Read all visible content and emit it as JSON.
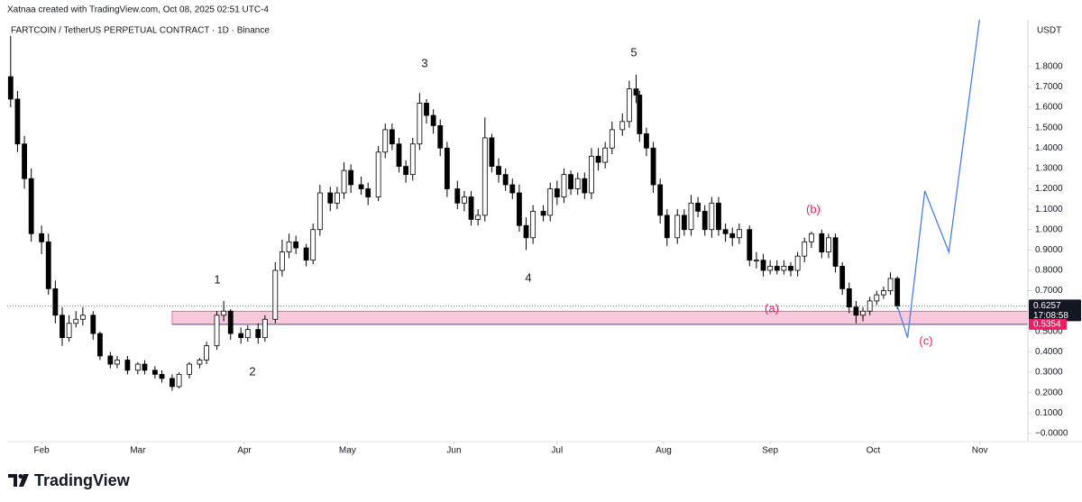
{
  "chart_data": {
    "type": "candlestick",
    "attribution": "Xatnaa created with TradingView.com, Oct 08, 2025 02:51 UTC-4",
    "title": "FARTCOIN / TetherUS PERPETUAL CONTRACT · 1D · Binance",
    "currency": "USDT",
    "brand": "TradingView",
    "up_color": "#ffffff",
    "down_color": "#000000",
    "edge_color": "#000000",
    "grid": false,
    "x": [
      23,
      25,
      27,
      29,
      32,
      34,
      36,
      38,
      40,
      42,
      44,
      47,
      49,
      52,
      54,
      57,
      60,
      62,
      65,
      67,
      70,
      72,
      75,
      78,
      80,
      83,
      85,
      87,
      90,
      92,
      95,
      97,
      100,
      102,
      104,
      106,
      109,
      111,
      113,
      116,
      118,
      120,
      122,
      125,
      127,
      130,
      132,
      134,
      136,
      138,
      140,
      142,
      144,
      146,
      148,
      150,
      153,
      155,
      157,
      159,
      161,
      163,
      165,
      167,
      169,
      171,
      173,
      175,
      178,
      180,
      182,
      184,
      186,
      188,
      190,
      192,
      194,
      196,
      198,
      201,
      203,
      205,
      206,
      208,
      210,
      212,
      214,
      217,
      219,
      221,
      223,
      225,
      227,
      229,
      231,
      233,
      235,
      238,
      240,
      242,
      244,
      246,
      248,
      250,
      252,
      254,
      256,
      259,
      261,
      263,
      265,
      267,
      269,
      271,
      273,
      275,
      277,
      279,
      281
    ],
    "open": [
      1.75,
      1.64,
      1.42,
      1.25,
      0.98,
      0.94,
      0.71,
      0.58,
      0.47,
      0.54,
      0.56,
      0.58,
      0.49,
      0.38,
      0.34,
      0.36,
      0.31,
      0.34,
      0.31,
      0.29,
      0.27,
      0.23,
      0.29,
      0.34,
      0.36,
      0.43,
      0.58,
      0.6,
      0.49,
      0.47,
      0.51,
      0.47,
      0.56,
      0.8,
      0.89,
      0.94,
      0.91,
      0.85,
      1.0,
      1.18,
      1.13,
      1.18,
      1.29,
      1.22,
      1.2,
      1.16,
      1.38,
      1.49,
      1.42,
      1.31,
      1.27,
      1.42,
      1.62,
      1.56,
      1.51,
      1.4,
      1.2,
      1.13,
      1.16,
      1.05,
      1.07,
      1.45,
      1.31,
      1.27,
      1.22,
      1.18,
      1.02,
      0.96,
      1.09,
      1.07,
      1.2,
      1.16,
      1.27,
      1.2,
      1.25,
      1.18,
      1.36,
      1.33,
      1.4,
      1.49,
      1.53,
      1.69,
      1.66,
      1.47,
      1.4,
      1.22,
      1.07,
      0.96,
      1.07,
      1.0,
      1.13,
      1.09,
      1.0,
      1.13,
      1.0,
      0.98,
      0.96,
      1.0,
      0.85,
      0.85,
      0.8,
      0.82,
      0.8,
      0.82,
      0.8,
      0.87,
      0.94,
      0.98,
      0.89,
      0.96,
      0.82,
      0.71,
      0.62,
      0.58,
      0.6,
      0.65,
      0.68,
      0.7,
      0.76
    ],
    "high": [
      1.95,
      1.68,
      1.46,
      1.3,
      1.02,
      0.98,
      0.75,
      0.62,
      0.58,
      0.6,
      0.62,
      0.6,
      0.5,
      0.4,
      0.38,
      0.38,
      0.35,
      0.36,
      0.33,
      0.31,
      0.29,
      0.3,
      0.35,
      0.37,
      0.45,
      0.6,
      0.65,
      0.61,
      0.52,
      0.53,
      0.54,
      0.58,
      0.84,
      0.95,
      0.98,
      0.97,
      0.93,
      1.03,
      1.22,
      1.21,
      1.21,
      1.33,
      1.32,
      1.26,
      1.23,
      1.41,
      1.52,
      1.52,
      1.45,
      1.34,
      1.45,
      1.67,
      1.64,
      1.59,
      1.54,
      1.43,
      1.24,
      1.19,
      1.19,
      1.1,
      1.55,
      1.47,
      1.35,
      1.3,
      1.25,
      1.22,
      1.06,
      1.12,
      1.12,
      1.23,
      1.24,
      1.3,
      1.29,
      1.28,
      1.28,
      1.4,
      1.4,
      1.43,
      1.53,
      1.57,
      1.73,
      1.76,
      1.68,
      1.5,
      1.43,
      1.25,
      1.1,
      1.1,
      1.1,
      1.17,
      1.16,
      1.12,
      1.16,
      1.16,
      1.03,
      1.01,
      1.03,
      1.02,
      0.89,
      0.88,
      0.85,
      0.85,
      0.85,
      0.84,
      0.89,
      0.96,
      0.99,
      1.0,
      0.98,
      0.98,
      0.84,
      0.74,
      0.65,
      0.62,
      0.67,
      0.7,
      0.72,
      0.79,
      0.77
    ],
    "low": [
      1.6,
      1.38,
      1.2,
      0.94,
      0.88,
      0.68,
      0.54,
      0.43,
      0.45,
      0.52,
      0.53,
      0.46,
      0.36,
      0.32,
      0.32,
      0.29,
      0.29,
      0.29,
      0.27,
      0.25,
      0.21,
      0.22,
      0.27,
      0.32,
      0.34,
      0.41,
      0.55,
      0.46,
      0.44,
      0.45,
      0.44,
      0.45,
      0.54,
      0.77,
      0.86,
      0.88,
      0.82,
      0.83,
      0.97,
      1.09,
      1.1,
      1.15,
      1.18,
      1.17,
      1.12,
      1.14,
      1.35,
      1.39,
      1.28,
      1.23,
      1.24,
      1.39,
      1.52,
      1.47,
      1.36,
      1.16,
      1.1,
      1.09,
      1.02,
      1.02,
      1.04,
      1.28,
      1.23,
      1.19,
      1.15,
      0.99,
      0.9,
      0.93,
      1.04,
      1.04,
      1.12,
      1.13,
      1.17,
      1.17,
      1.15,
      1.15,
      1.29,
      1.3,
      1.37,
      1.46,
      1.5,
      1.62,
      1.43,
      1.36,
      1.18,
      1.03,
      0.92,
      0.93,
      0.97,
      0.97,
      1.06,
      0.97,
      0.96,
      0.97,
      0.94,
      0.92,
      0.93,
      0.82,
      0.81,
      0.77,
      0.78,
      0.78,
      0.78,
      0.77,
      0.77,
      0.84,
      0.91,
      0.86,
      0.86,
      0.79,
      0.68,
      0.59,
      0.54,
      0.55,
      0.58,
      0.63,
      0.66,
      0.68,
      0.61
    ],
    "close": [
      1.64,
      1.42,
      1.25,
      0.98,
      0.94,
      0.71,
      0.58,
      0.47,
      0.54,
      0.56,
      0.58,
      0.49,
      0.38,
      0.34,
      0.36,
      0.31,
      0.34,
      0.31,
      0.29,
      0.27,
      0.23,
      0.29,
      0.34,
      0.36,
      0.43,
      0.58,
      0.6,
      0.49,
      0.47,
      0.51,
      0.47,
      0.56,
      0.8,
      0.89,
      0.94,
      0.91,
      0.85,
      1.0,
      1.18,
      1.13,
      1.18,
      1.29,
      1.22,
      1.2,
      1.16,
      1.38,
      1.49,
      1.42,
      1.31,
      1.27,
      1.42,
      1.62,
      1.56,
      1.51,
      1.4,
      1.2,
      1.13,
      1.16,
      1.05,
      1.07,
      1.45,
      1.31,
      1.27,
      1.22,
      1.18,
      1.02,
      0.96,
      1.09,
      1.07,
      1.2,
      1.16,
      1.27,
      1.2,
      1.25,
      1.18,
      1.36,
      1.33,
      1.4,
      1.49,
      1.53,
      1.69,
      1.66,
      1.47,
      1.4,
      1.22,
      1.07,
      0.96,
      1.07,
      1.0,
      1.13,
      1.09,
      1.0,
      1.13,
      1.0,
      0.98,
      0.96,
      1.0,
      0.85,
      0.85,
      0.8,
      0.82,
      0.8,
      0.82,
      0.8,
      0.87,
      0.94,
      0.98,
      0.89,
      0.96,
      0.82,
      0.71,
      0.62,
      0.58,
      0.6,
      0.65,
      0.68,
      0.7,
      0.76,
      0.6257
    ],
    "countdown": "17:08:58",
    "zone": {
      "from_x": 70,
      "range": [
        0.5354,
        0.6
      ],
      "color": "#f8c8dc",
      "edge_color": "#e91e63",
      "line_color": "#3f51b5"
    },
    "projection": {
      "x": [
        281,
        284,
        289,
        296,
        305
      ],
      "y": [
        0.6257,
        0.47,
        1.19,
        0.89,
        2.04
      ],
      "color": "#4a7fe0"
    },
    "annotations": [
      "1",
      "2",
      "3",
      "4",
      "5",
      "(a)",
      "(b)",
      "(c)"
    ],
    "xlim": [
      22,
      319
    ],
    "xticks": [
      {
        "value": 32,
        "label": "Feb"
      },
      {
        "value": 60,
        "label": "Mar"
      },
      {
        "value": 91,
        "label": "Apr"
      },
      {
        "value": 121,
        "label": "May"
      },
      {
        "value": 152,
        "label": "Jun"
      },
      {
        "value": 182,
        "label": "Jul"
      },
      {
        "value": 213,
        "label": "Aug"
      },
      {
        "value": 244,
        "label": "Sep"
      },
      {
        "value": 274,
        "label": "Oct"
      },
      {
        "value": 305,
        "label": "Nov"
      }
    ],
    "ylim": [
      -0.04,
      2.02
    ],
    "yticks": [
      {
        "value": 0,
        "label": "−0.0000"
      },
      {
        "value": 0.1,
        "label": "0.1000"
      },
      {
        "value": 0.2,
        "label": "0.2000"
      },
      {
        "value": 0.3,
        "label": "0.3000"
      },
      {
        "value": 0.4,
        "label": "0.4000"
      },
      {
        "value": 0.5,
        "label": "0.5000"
      },
      {
        "value": 0.6,
        "label": "0.6000"
      },
      {
        "value": 0.7,
        "label": "0.7000"
      },
      {
        "value": 0.8,
        "label": "0.8000"
      },
      {
        "value": 0.9,
        "label": "0.9000"
      },
      {
        "value": 1.0,
        "label": "1.0000"
      },
      {
        "value": 1.1,
        "label": "1.1000"
      },
      {
        "value": 1.2,
        "label": "1.2000"
      },
      {
        "value": 1.3,
        "label": "1.3000"
      },
      {
        "value": 1.4,
        "label": "1.4000"
      },
      {
        "value": 1.5,
        "label": "1.5000"
      },
      {
        "value": 1.6,
        "label": "1.6000"
      },
      {
        "value": 1.7,
        "label": "1.7000"
      },
      {
        "value": 1.8,
        "label": "1.8000"
      }
    ]
  }
}
